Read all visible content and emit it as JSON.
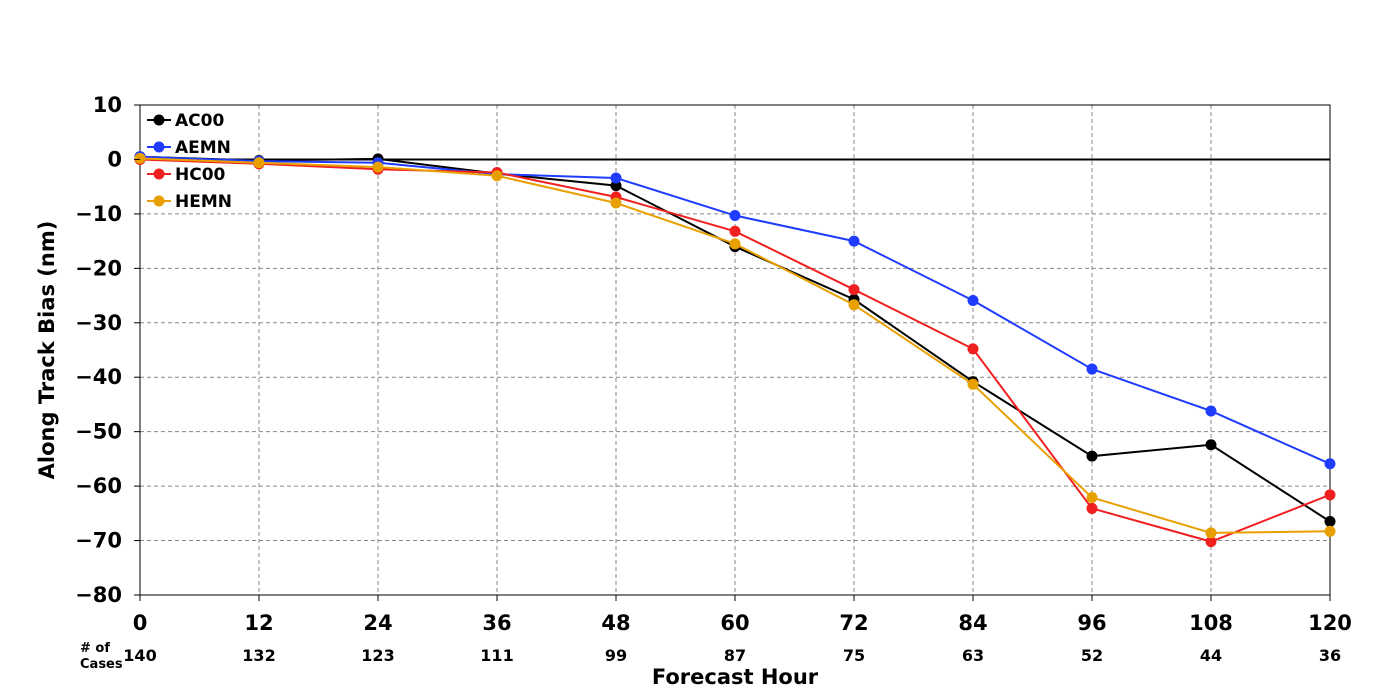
{
  "chart_data": {
    "type": "line",
    "title": "",
    "xlabel": "Forecast Hour",
    "ylabel": "Along Track Bias (nm)",
    "x": [
      0,
      12,
      24,
      36,
      48,
      60,
      72,
      84,
      96,
      108,
      120
    ],
    "x_tick_labels": [
      "0",
      "12",
      "24",
      "36",
      "48",
      "60",
      "72",
      "84",
      "96",
      "108",
      "120"
    ],
    "xlim": [
      0,
      120
    ],
    "ylim": [
      -80,
      10
    ],
    "y_ticks": [
      10,
      0,
      -10,
      -20,
      -30,
      -40,
      -50,
      -60,
      -70,
      -80
    ],
    "y_tick_labels": [
      "10",
      "0",
      "−10",
      "−20",
      "−30",
      "−40",
      "−50",
      "−60",
      "−70",
      "−80"
    ],
    "grid": true,
    "zero_line": true,
    "legend_position": "top-left",
    "cases_label": "# of\nCases",
    "cases": [
      "140",
      "132",
      "123",
      "111",
      "99",
      "87",
      "75",
      "63",
      "52",
      "44",
      "36"
    ],
    "series": [
      {
        "name": "AC00",
        "color": "#000000",
        "values": [
          0.5,
          -0.2,
          0.1,
          -2.6,
          -4.8,
          -16.0,
          -25.7,
          -40.8,
          -54.5,
          -52.4,
          -66.5
        ]
      },
      {
        "name": "AEMN",
        "color": "#1f3cff",
        "values": [
          0.5,
          -0.3,
          -0.6,
          -2.7,
          -3.4,
          -10.3,
          -15.0,
          -25.9,
          -38.5,
          -46.2,
          -55.9
        ]
      },
      {
        "name": "HC00",
        "color": "#f02020",
        "values": [
          0.0,
          -0.8,
          -1.8,
          -2.4,
          -6.9,
          -13.2,
          -23.9,
          -34.8,
          -64.1,
          -70.2,
          -61.6
        ]
      },
      {
        "name": "HEMN",
        "color": "#e8a000",
        "values": [
          0.2,
          -0.6,
          -1.4,
          -3.0,
          -8.0,
          -15.5,
          -26.7,
          -41.3,
          -62.1,
          -68.6,
          -68.3
        ]
      }
    ]
  }
}
